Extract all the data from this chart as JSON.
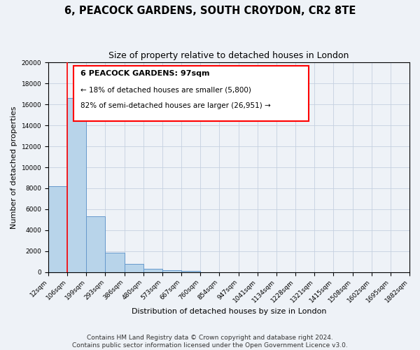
{
  "title": "6, PEACOCK GARDENS, SOUTH CROYDON, CR2 8TE",
  "subtitle": "Size of property relative to detached houses in London",
  "bar_values": [
    8200,
    16600,
    5300,
    1850,
    750,
    280,
    150,
    100,
    0,
    0,
    0,
    0,
    0,
    0,
    0,
    0,
    0,
    0,
    0
  ],
  "bin_labels": [
    "12sqm",
    "106sqm",
    "199sqm",
    "293sqm",
    "386sqm",
    "480sqm",
    "573sqm",
    "667sqm",
    "760sqm",
    "854sqm",
    "947sqm",
    "1041sqm",
    "1134sqm",
    "1228sqm",
    "1321sqm",
    "1415sqm",
    "1508sqm",
    "1602sqm",
    "1695sqm",
    "1882sqm"
  ],
  "bar_color": "#b8d4ea",
  "bar_edge_color": "#6699cc",
  "red_line_x": 1,
  "ann_line1": "6 PEACOCK GARDENS: 97sqm",
  "ann_line2": "← 18% of detached houses are smaller (5,800)",
  "ann_line3": "82% of semi-detached houses are larger (26,951) →",
  "xlabel": "Distribution of detached houses by size in London",
  "ylabel": "Number of detached properties",
  "ylim": [
    0,
    20000
  ],
  "yticks": [
    0,
    2000,
    4000,
    6000,
    8000,
    10000,
    12000,
    14000,
    16000,
    18000,
    20000
  ],
  "footer_line1": "Contains HM Land Registry data © Crown copyright and database right 2024.",
  "footer_line2": "Contains public sector information licensed under the Open Government Licence v3.0.",
  "bg_color": "#eef2f7",
  "plot_bg_color": "#eef2f7",
  "grid_color": "#c5d0e0",
  "title_fontsize": 10.5,
  "subtitle_fontsize": 9,
  "label_fontsize": 8,
  "tick_fontsize": 6.5,
  "footer_fontsize": 6.5
}
